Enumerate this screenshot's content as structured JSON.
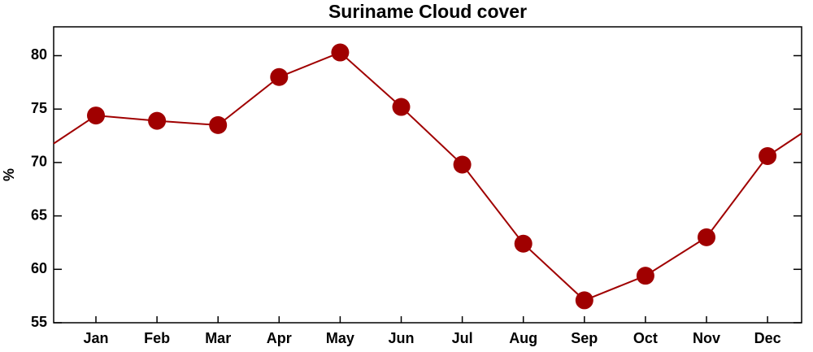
{
  "chart_data": {
    "type": "line",
    "title": "Suriname Cloud cover",
    "ylabel": "%",
    "categories": [
      "Jan",
      "Feb",
      "Mar",
      "Apr",
      "May",
      "Jun",
      "Jul",
      "Aug",
      "Sep",
      "Oct",
      "Nov",
      "Dec"
    ],
    "series": [
      {
        "name": "Cloud cover",
        "color": "#a00000",
        "values": [
          74.4,
          73.9,
          73.5,
          78.0,
          80.3,
          75.2,
          69.8,
          62.4,
          57.1,
          59.4,
          63.0,
          70.6
        ]
      }
    ],
    "ylim": [
      55,
      82.7
    ],
    "yticks": [
      55,
      60,
      65,
      70,
      75,
      80
    ],
    "grid": false,
    "legend": false
  }
}
